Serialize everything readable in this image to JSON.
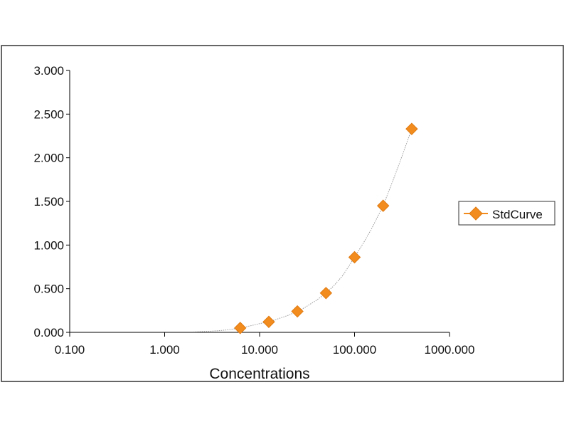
{
  "colors": {
    "marker": "#f28c1e",
    "marker_stroke": "#e07a10",
    "curve": "#9a9a9a",
    "axis": "#000000",
    "frame": "#333333"
  },
  "chart_data": {
    "type": "scatter",
    "xscale": "log",
    "xlim": [
      0.1,
      1000
    ],
    "ylim": [
      0,
      3
    ],
    "xlabel": "Concentrations",
    "ylabel": "",
    "x_ticks": [
      0.1,
      1,
      10,
      100,
      1000
    ],
    "x_tick_labels": [
      "0.100",
      "1.000",
      "10.000",
      "100.000",
      "1000.000"
    ],
    "y_ticks": [
      0,
      0.5,
      1,
      1.5,
      2,
      2.5,
      3
    ],
    "y_tick_labels": [
      "0.000",
      "0.500",
      "1.000",
      "1.500",
      "2.000",
      "2.500",
      "3.000"
    ],
    "grid": false,
    "legend_position": "right",
    "series": [
      {
        "name": "StdCurve",
        "marker": "diamond",
        "x": [
          6.25,
          12.5,
          25,
          50,
          100,
          200,
          400
        ],
        "y": [
          0.05,
          0.12,
          0.24,
          0.45,
          0.86,
          1.45,
          2.33
        ]
      }
    ],
    "fit_curve": {
      "style": "dotted",
      "x": [
        2,
        3,
        4,
        5,
        6.25,
        8,
        10,
        12.5,
        15,
        20,
        25,
        30,
        40,
        50,
        60,
        75,
        100,
        125,
        150,
        200,
        250,
        300,
        400
      ],
      "y": [
        0.005,
        0.012,
        0.022,
        0.034,
        0.05,
        0.075,
        0.1,
        0.12,
        0.148,
        0.195,
        0.24,
        0.285,
        0.37,
        0.45,
        0.53,
        0.65,
        0.86,
        1.03,
        1.18,
        1.45,
        1.72,
        1.95,
        2.33
      ]
    }
  }
}
